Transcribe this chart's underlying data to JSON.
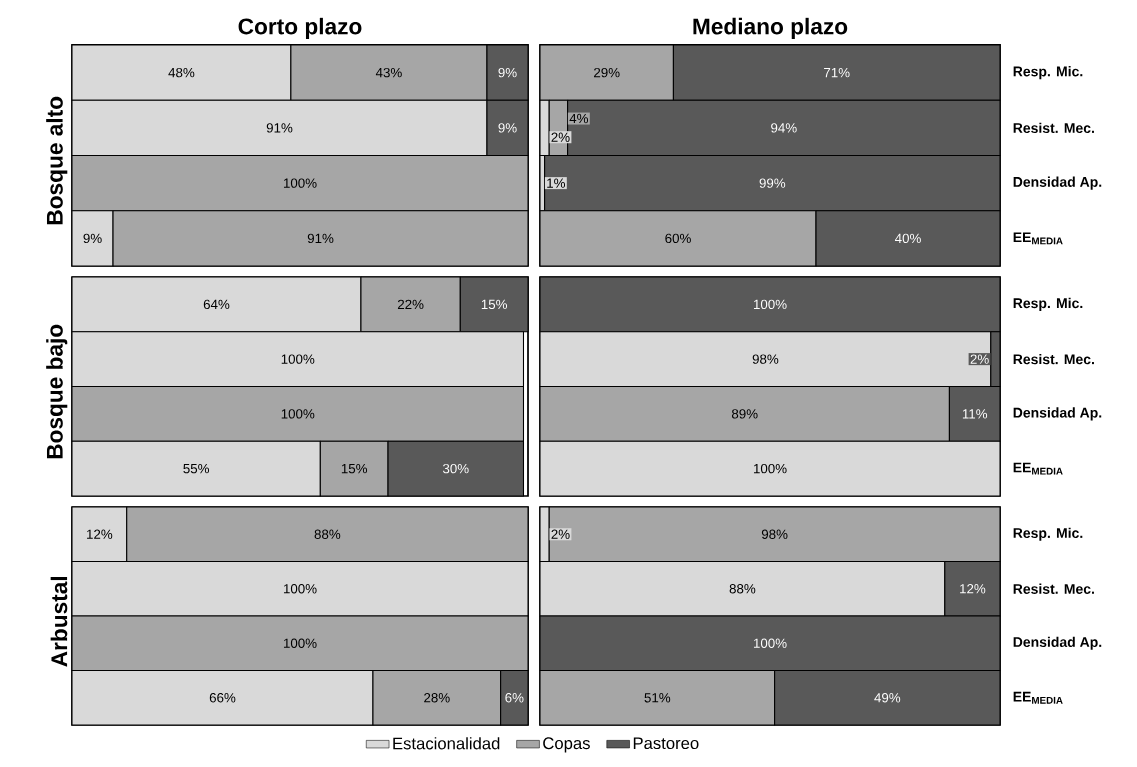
{
  "chart_data": [
    {
      "type": "bar",
      "orientation": "horizontal",
      "stacked": true,
      "title": "Corto plazo",
      "ylabel": "Bosque alto",
      "categories": [
        null,
        null,
        null,
        null
      ],
      "tick_labels": false,
      "series": [
        {
          "color": "#d9d9d9",
          "values": [
            48,
            91,
            null,
            9
          ],
          "value_labels": [
            "48%",
            "91%",
            null,
            "9%"
          ]
        },
        {
          "color": "#a6a6a6",
          "values": [
            43,
            null,
            100,
            91
          ],
          "value_labels": [
            "43%",
            null,
            "100%",
            "91%"
          ]
        },
        {
          "color": "#595959",
          "values": [
            9,
            9,
            null,
            null
          ],
          "value_labels": [
            "9%",
            "9%",
            null,
            null
          ]
        }
      ]
    },
    {
      "type": "bar",
      "orientation": "horizontal",
      "stacked": true,
      "title": "Mediano plazo",
      "categories": [
        "Resp. Mic.",
        "Resist. Mec.",
        "Densidad Ap.",
        "EE$_{MEDIA}$"
      ],
      "tick_labels": "y",
      "series": [
        {
          "color": "#d9d9d9",
          "values": [
            null,
            2,
            1,
            null
          ],
          "value_labels": [
            null,
            "2%",
            "1%",
            null
          ]
        },
        {
          "color": "#a6a6a6",
          "values": [
            29,
            4,
            null,
            60
          ],
          "value_labels": [
            "29%",
            "4%",
            null,
            "60%"
          ]
        },
        {
          "color": "#595959",
          "values": [
            71,
            94,
            99,
            40
          ],
          "value_labels": [
            "71%",
            "94%",
            "99%",
            "40%"
          ]
        }
      ]
    },
    {
      "type": "bar",
      "orientation": "horizontal",
      "stacked": true,
      "ylabel": "Bosque bajo",
      "categories": [
        null,
        null,
        null,
        null
      ],
      "tick_labels": false,
      "series": [
        {
          "color": "#d9d9d9",
          "values": [
            64,
            100,
            null,
            55
          ],
          "value_labels": [
            "64%",
            "100%",
            null,
            "55%"
          ]
        },
        {
          "color": "#a6a6a6",
          "values": [
            22,
            null,
            100,
            15
          ],
          "value_labels": [
            "22%",
            null,
            "100%",
            "15%"
          ]
        },
        {
          "color": "#595959",
          "values": [
            15,
            null,
            null,
            30
          ],
          "value_labels": [
            "15%",
            null,
            null,
            "30%"
          ]
        }
      ]
    },
    {
      "type": "bar",
      "orientation": "horizontal",
      "stacked": true,
      "categories": [
        "Resp. Mic.",
        "Resist. Mec.",
        "Densidad Ap.",
        "EE$_{MEDIA}$"
      ],
      "tick_labels": "y",
      "series": [
        {
          "color": "#d9d9d9",
          "values": [
            null,
            98,
            null,
            100
          ],
          "value_labels": [
            null,
            "98%",
            null,
            "100%"
          ]
        },
        {
          "color": "#a6a6a6",
          "values": [
            null,
            null,
            89,
            null
          ],
          "value_labels": [
            null,
            null,
            "89%",
            null
          ]
        },
        {
          "color": "#595959",
          "values": [
            100,
            2,
            11,
            null
          ],
          "value_labels": [
            "100%",
            "2%",
            "11%",
            null
          ]
        }
      ]
    },
    {
      "type": "bar",
      "orientation": "horizontal",
      "stacked": true,
      "ylabel": "Arbustal",
      "legend": "bottom",
      "categories": [
        null,
        null,
        null,
        null
      ],
      "tick_labels": false,
      "series": [
        {
          "name": "Estacionalidad",
          "color": "#d9d9d9",
          "values": [
            12,
            100,
            null,
            66
          ],
          "value_labels": [
            "12%",
            "100%",
            null,
            "66%"
          ]
        },
        {
          "name": "Copas",
          "color": "#a6a6a6",
          "values": [
            88,
            null,
            100,
            28
          ],
          "value_labels": [
            "88%",
            null,
            "100%",
            "28%"
          ]
        },
        {
          "name": "Pastoreo",
          "color": "#595959",
          "values": [
            null,
            null,
            null,
            6
          ],
          "value_labels": [
            null,
            null,
            null,
            "6%"
          ]
        }
      ]
    },
    {
      "type": "bar",
      "orientation": "horizontal",
      "stacked": true,
      "categories": [
        "Resp. Mic.",
        "Resist. Mec.",
        "Densidad Ap.",
        "EE$_{MEDIA}$"
      ],
      "tick_labels": "y",
      "series": [
        {
          "color": "#d9d9d9",
          "values": [
            2,
            88,
            null,
            null
          ],
          "value_labels": [
            "2%",
            "88%",
            null,
            null
          ]
        },
        {
          "color": "#a6a6a6",
          "values": [
            98,
            null,
            null,
            51
          ],
          "value_labels": [
            "98%",
            null,
            null,
            "51%"
          ]
        },
        {
          "color": "#595959",
          "values": [
            null,
            12,
            100,
            49
          ],
          "value_labels": [
            null,
            "12%",
            "100%",
            "49%"
          ]
        }
      ]
    }
  ]
}
